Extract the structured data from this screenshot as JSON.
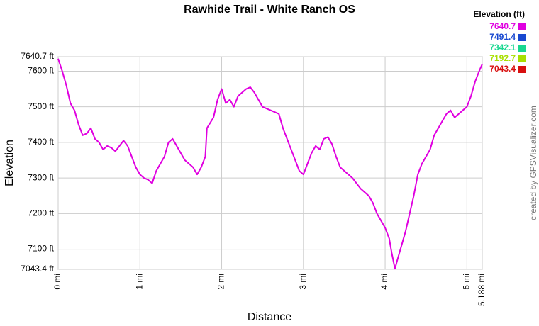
{
  "chart_data": {
    "type": "line",
    "title": "Rawhide Trail - White Ranch OS",
    "xlabel": "Distance",
    "ylabel": "Elevation",
    "credit": "created by GPSVisualizer.com",
    "legend_title": "Elevation (ft)",
    "color_scale": [
      {
        "value": 7640.7,
        "color": "#e000e0"
      },
      {
        "value": 7491.4,
        "color": "#1848d0"
      },
      {
        "value": 7342.1,
        "color": "#18d890"
      },
      {
        "value": 7192.7,
        "color": "#a8e000"
      },
      {
        "value": 7043.4,
        "color": "#d81010"
      }
    ],
    "grid": true,
    "xlim": [
      0,
      5.188
    ],
    "xticks": [
      {
        "value": 0,
        "label": "0 mi"
      },
      {
        "value": 1,
        "label": "1 mi"
      },
      {
        "value": 2,
        "label": "2 mi"
      },
      {
        "value": 3,
        "label": "3 mi"
      },
      {
        "value": 4,
        "label": "4 mi"
      },
      {
        "value": 5,
        "label": "5 mi"
      },
      {
        "value": 5.188,
        "label": "5.188 mi"
      }
    ],
    "ylim": [
      7043.4,
      7640.7
    ],
    "yticks": [
      {
        "value": 7043.4,
        "label": "7043.4 ft"
      },
      {
        "value": 7100,
        "label": "7100 ft"
      },
      {
        "value": 7200,
        "label": "7200 ft"
      },
      {
        "value": 7300,
        "label": "7300 ft"
      },
      {
        "value": 7400,
        "label": "7400 ft"
      },
      {
        "value": 7500,
        "label": "7500 ft"
      },
      {
        "value": 7600,
        "label": "7600 ft"
      },
      {
        "value": 7640.7,
        "label": "7640.7 ft"
      }
    ],
    "x": [
      0,
      0.05,
      0.1,
      0.15,
      0.2,
      0.25,
      0.3,
      0.35,
      0.4,
      0.45,
      0.5,
      0.55,
      0.6,
      0.65,
      0.7,
      0.75,
      0.8,
      0.85,
      0.9,
      0.95,
      1.0,
      1.05,
      1.1,
      1.15,
      1.2,
      1.25,
      1.3,
      1.35,
      1.4,
      1.45,
      1.5,
      1.55,
      1.6,
      1.65,
      1.7,
      1.75,
      1.8,
      1.82,
      1.9,
      1.95,
      2.0,
      2.05,
      2.1,
      2.15,
      2.2,
      2.3,
      2.35,
      2.4,
      2.45,
      2.5,
      2.6,
      2.7,
      2.75,
      2.8,
      2.85,
      2.9,
      2.95,
      3.0,
      3.05,
      3.1,
      3.15,
      3.2,
      3.25,
      3.3,
      3.35,
      3.4,
      3.45,
      3.5,
      3.6,
      3.7,
      3.8,
      3.85,
      3.9,
      3.95,
      4.0,
      4.05,
      4.08,
      4.12,
      4.15,
      4.2,
      4.25,
      4.3,
      4.35,
      4.4,
      4.45,
      4.5,
      4.55,
      4.6,
      4.7,
      4.75,
      4.8,
      4.85,
      4.9,
      4.95,
      5.0,
      5.05,
      5.1,
      5.15,
      5.188
    ],
    "values": [
      7635,
      7600,
      7560,
      7510,
      7490,
      7450,
      7420,
      7425,
      7440,
      7410,
      7400,
      7380,
      7390,
      7385,
      7375,
      7390,
      7405,
      7390,
      7360,
      7330,
      7310,
      7300,
      7295,
      7285,
      7320,
      7340,
      7360,
      7400,
      7410,
      7390,
      7370,
      7350,
      7340,
      7330,
      7310,
      7330,
      7360,
      7440,
      7470,
      7520,
      7550,
      7510,
      7520,
      7500,
      7530,
      7550,
      7555,
      7540,
      7520,
      7500,
      7490,
      7480,
      7440,
      7410,
      7380,
      7350,
      7320,
      7310,
      7340,
      7370,
      7390,
      7380,
      7410,
      7415,
      7395,
      7360,
      7330,
      7320,
      7300,
      7270,
      7250,
      7230,
      7200,
      7180,
      7160,
      7130,
      7090,
      7045,
      7070,
      7110,
      7150,
      7200,
      7250,
      7310,
      7340,
      7360,
      7380,
      7420,
      7460,
      7480,
      7490,
      7470,
      7480,
      7490,
      7500,
      7530,
      7570,
      7600,
      7620
    ]
  }
}
